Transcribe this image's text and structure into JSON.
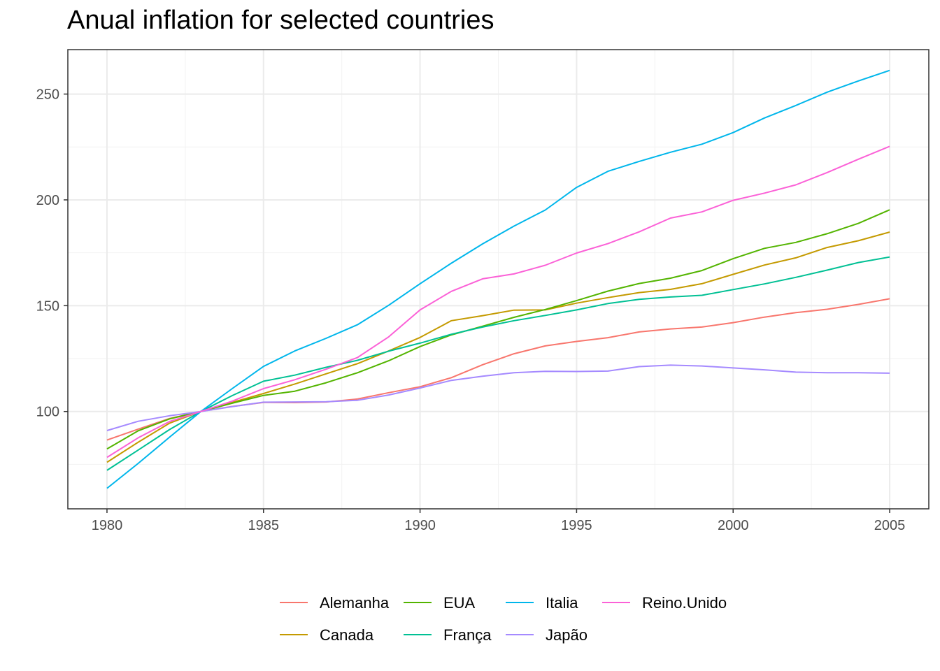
{
  "chart_data": {
    "type": "line",
    "title": "Anual inflation for selected countries",
    "xlabel": "",
    "ylabel": "",
    "x": [
      1980,
      1981,
      1982,
      1983,
      1984,
      1985,
      1986,
      1987,
      1988,
      1989,
      1990,
      1991,
      1992,
      1993,
      1994,
      1995,
      1996,
      1997,
      1998,
      1999,
      2000,
      2001,
      2002,
      2003,
      2004,
      2005
    ],
    "xlim": [
      1978.75,
      2006.25
    ],
    "ylim": [
      54,
      271
    ],
    "x_ticks": [
      "1980",
      "1985",
      "1990",
      "1995",
      "2000",
      "2005"
    ],
    "y_ticks": [
      "100",
      "150",
      "200",
      "250"
    ],
    "grid": true,
    "legend_position": "bottom",
    "series": [
      {
        "name": "Alemanha",
        "color": "#F8766D",
        "values": [
          86.5,
          91.7,
          96.7,
          100,
          102.4,
          104.3,
          104.2,
          104.5,
          105.9,
          108.9,
          111.7,
          116.0,
          122.1,
          127.3,
          131.0,
          133.1,
          134.9,
          137.6,
          139.0,
          139.9,
          142.0,
          144.6,
          146.7,
          148.3,
          150.6,
          153.3
        ]
      },
      {
        "name": "Canada",
        "color": "#C49A00",
        "values": [
          76.0,
          85.5,
          94.5,
          100,
          104.3,
          108.5,
          113.0,
          117.8,
          122.6,
          128.6,
          135.0,
          142.9,
          145.3,
          147.9,
          148.0,
          151.2,
          153.8,
          156.2,
          157.7,
          160.4,
          164.8,
          169.2,
          172.6,
          177.5,
          180.7,
          184.8
        ]
      },
      {
        "name": "EUA",
        "color": "#53B400",
        "values": [
          82.3,
          90.9,
          96.5,
          100,
          103.9,
          107.6,
          109.6,
          113.6,
          118.3,
          124.0,
          130.7,
          136.2,
          140.3,
          144.5,
          148.2,
          152.4,
          156.9,
          160.5,
          163.0,
          166.6,
          172.2,
          177.1,
          179.9,
          184.0,
          188.9,
          195.3
        ]
      },
      {
        "name": "França",
        "color": "#00C094",
        "values": [
          72.2,
          81.8,
          91.5,
          100,
          107.5,
          114.3,
          117.2,
          120.9,
          124.2,
          128.5,
          132.3,
          136.5,
          139.9,
          142.9,
          145.4,
          148.0,
          151.0,
          153.0,
          154.1,
          154.9,
          157.6,
          160.3,
          163.4,
          166.8,
          170.4,
          173.0
        ]
      },
      {
        "name": "Italia",
        "color": "#00B6EB",
        "values": [
          63.7,
          75.5,
          87.9,
          100,
          110.8,
          121.3,
          128.6,
          134.6,
          141.0,
          150.2,
          160.4,
          170.1,
          179.2,
          187.6,
          195.2,
          205.9,
          213.5,
          218.2,
          222.5,
          226.3,
          231.8,
          238.7,
          244.6,
          250.9,
          256.2,
          261.2
        ]
      },
      {
        "name": "Japão",
        "color": "#A58AFF",
        "values": [
          91.0,
          95.4,
          98.0,
          100,
          102.3,
          104.4,
          104.5,
          104.6,
          105.3,
          107.8,
          111.1,
          114.7,
          116.7,
          118.3,
          119.0,
          118.9,
          119.1,
          121.2,
          121.9,
          121.5,
          120.6,
          119.7,
          118.6,
          118.3,
          118.3,
          118.1
        ]
      },
      {
        "name": "Reino.Unido",
        "color": "#FB61D7",
        "values": [
          78.3,
          87.6,
          95.3,
          100,
          104.9,
          110.8,
          115.0,
          120.0,
          125.5,
          135.3,
          148.0,
          156.8,
          162.7,
          165.0,
          169.1,
          174.9,
          179.3,
          184.9,
          191.4,
          194.3,
          199.8,
          203.2,
          207.1,
          212.9,
          219.2,
          225.3
        ]
      }
    ]
  }
}
